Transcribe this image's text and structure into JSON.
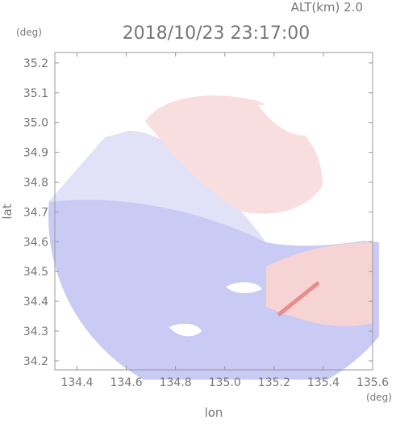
{
  "header": {
    "altitude": "ALT(km) 2.0",
    "unit_top": "(deg)",
    "title": "2018/10/23 23:17:00"
  },
  "chart_data": {
    "type": "map",
    "xlabel": "lon",
    "ylabel": "lat",
    "xunit": "(deg)",
    "xlim": [
      134.31,
      135.6
    ],
    "ylim": [
      34.17,
      35.235
    ],
    "xticks": [
      134.4,
      134.6,
      134.8,
      135.0,
      135.2,
      135.4,
      135.6
    ],
    "yticks": [
      34.2,
      34.3,
      34.4,
      34.5,
      34.6,
      34.7,
      34.8,
      34.9,
      35.0,
      35.1,
      35.2
    ]
  }
}
